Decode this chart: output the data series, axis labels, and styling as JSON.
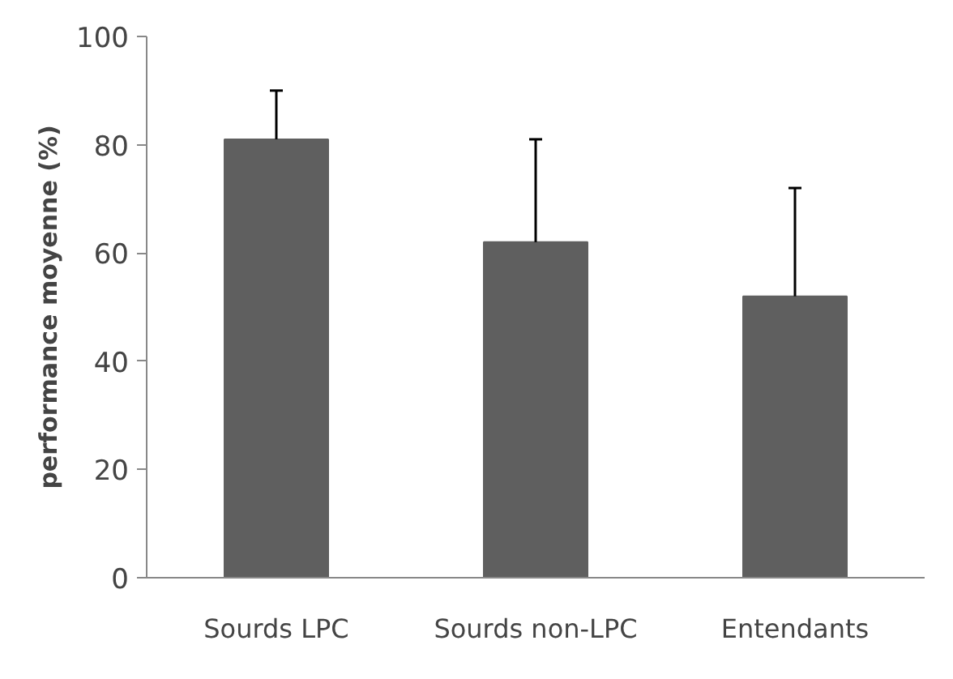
{
  "chart_data": {
    "type": "bar",
    "ylabel": "performance moyenne (%)",
    "categories": [
      "Sourds LPC",
      "Sourds non-LPC",
      "Entendants"
    ],
    "values": [
      81,
      62,
      52
    ],
    "color": "#5f5f5f",
    "errors": [
      [
        81,
        90
      ],
      [
        62,
        81
      ],
      [
        52,
        72
      ]
    ],
    "ylim": [
      0,
      100
    ],
    "yticks": [
      0,
      20,
      40,
      60,
      80,
      100
    ],
    "grid": false
  }
}
